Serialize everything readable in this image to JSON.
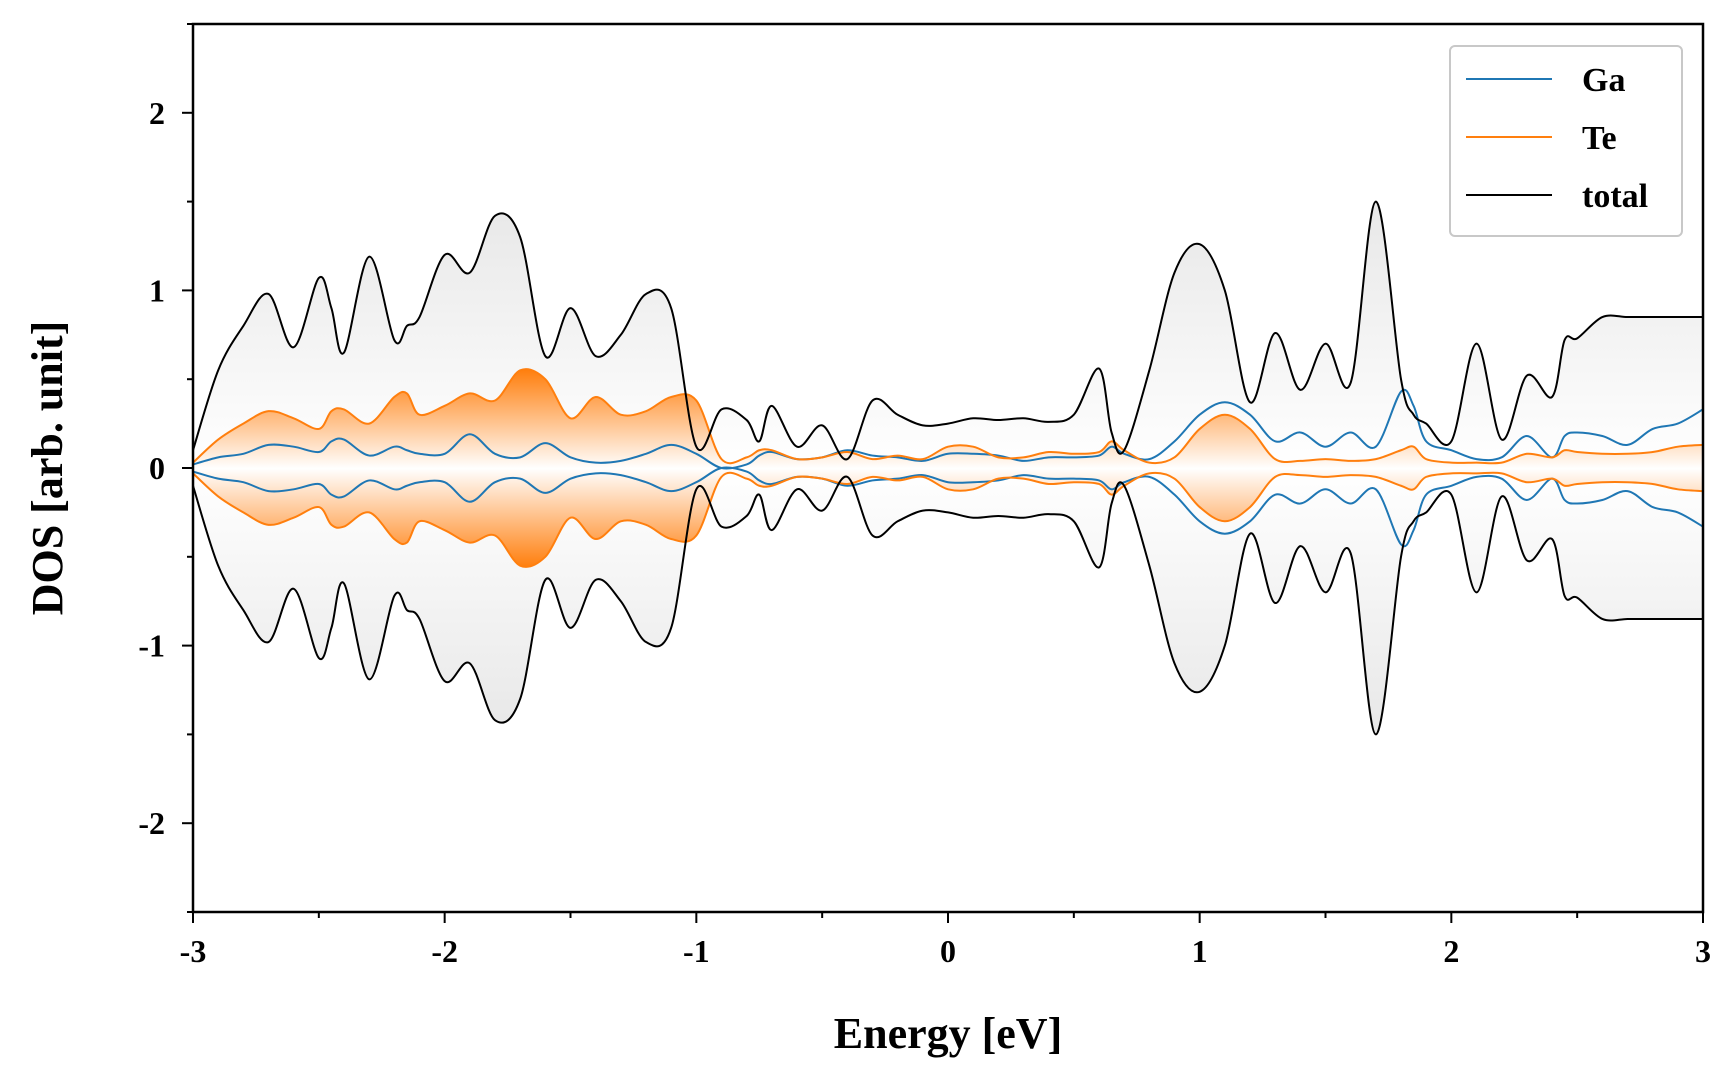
{
  "chart_data": {
    "type": "area",
    "title": "",
    "xlabel": "Energy [eV]",
    "ylabel": "DOS [arb. unit]",
    "xlim": [
      -3,
      3
    ],
    "ylim": [
      -2.5,
      2.5
    ],
    "xticks": [
      -3,
      -2,
      -1,
      0,
      1,
      2,
      3
    ],
    "xtick_labels": [
      "-3",
      "-2",
      "-1",
      "0",
      "1",
      "2",
      "3"
    ],
    "yticks": [
      -2,
      -1,
      0,
      1,
      2
    ],
    "ytick_labels": [
      "-2",
      "-1",
      "0",
      "1",
      "2"
    ],
    "grid": false,
    "legend_position": "top-right",
    "mirrored_about_zero": true,
    "series": [
      {
        "name": "Ga",
        "color": "#1f77b4",
        "filled": false,
        "x": [
          -3.0,
          -2.9,
          -2.8,
          -2.7,
          -2.6,
          -2.5,
          -2.45,
          -2.4,
          -2.3,
          -2.2,
          -2.15,
          -2.1,
          -2.0,
          -1.9,
          -1.8,
          -1.7,
          -1.6,
          -1.5,
          -1.4,
          -1.3,
          -1.2,
          -1.1,
          -1.0,
          -0.9,
          -0.8,
          -0.75,
          -0.7,
          -0.6,
          -0.5,
          -0.4,
          -0.3,
          -0.2,
          -0.1,
          0.0,
          0.1,
          0.2,
          0.3,
          0.4,
          0.5,
          0.6,
          0.65,
          0.7,
          0.8,
          0.9,
          1.0,
          1.1,
          1.2,
          1.3,
          1.4,
          1.5,
          1.6,
          1.7,
          1.8,
          1.85,
          1.9,
          2.0,
          2.1,
          2.2,
          2.3,
          2.4,
          2.45,
          2.5,
          2.6,
          2.7,
          2.8,
          2.9,
          3.0
        ],
        "y": [
          0.02,
          0.06,
          0.08,
          0.13,
          0.12,
          0.09,
          0.15,
          0.16,
          0.07,
          0.12,
          0.1,
          0.08,
          0.08,
          0.19,
          0.08,
          0.06,
          0.14,
          0.06,
          0.03,
          0.04,
          0.08,
          0.13,
          0.08,
          0.0,
          0.02,
          0.07,
          0.09,
          0.05,
          0.06,
          0.1,
          0.07,
          0.06,
          0.04,
          0.08,
          0.08,
          0.07,
          0.04,
          0.06,
          0.06,
          0.07,
          0.12,
          0.08,
          0.05,
          0.15,
          0.3,
          0.37,
          0.3,
          0.15,
          0.2,
          0.12,
          0.2,
          0.12,
          0.43,
          0.35,
          0.15,
          0.1,
          0.05,
          0.06,
          0.18,
          0.06,
          0.18,
          0.2,
          0.18,
          0.13,
          0.22,
          0.25,
          0.33
        ]
      },
      {
        "name": "Te",
        "color": "#ff7f0e",
        "filled": true,
        "x": [
          -3.0,
          -2.9,
          -2.8,
          -2.7,
          -2.6,
          -2.5,
          -2.45,
          -2.4,
          -2.3,
          -2.2,
          -2.15,
          -2.1,
          -2.0,
          -1.9,
          -1.8,
          -1.7,
          -1.6,
          -1.5,
          -1.4,
          -1.3,
          -1.2,
          -1.1,
          -1.0,
          -0.9,
          -0.8,
          -0.75,
          -0.7,
          -0.6,
          -0.5,
          -0.4,
          -0.3,
          -0.2,
          -0.1,
          0.0,
          0.1,
          0.2,
          0.3,
          0.4,
          0.5,
          0.6,
          0.65,
          0.7,
          0.8,
          0.9,
          1.0,
          1.1,
          1.2,
          1.3,
          1.4,
          1.5,
          1.6,
          1.7,
          1.8,
          1.85,
          1.9,
          2.0,
          2.1,
          2.2,
          2.3,
          2.4,
          2.45,
          2.5,
          2.6,
          2.7,
          2.8,
          2.9,
          3.0
        ],
        "y": [
          0.03,
          0.16,
          0.25,
          0.32,
          0.28,
          0.22,
          0.32,
          0.33,
          0.25,
          0.4,
          0.42,
          0.3,
          0.35,
          0.42,
          0.38,
          0.55,
          0.5,
          0.28,
          0.4,
          0.3,
          0.32,
          0.4,
          0.38,
          0.05,
          0.06,
          0.1,
          0.1,
          0.05,
          0.06,
          0.09,
          0.05,
          0.07,
          0.05,
          0.12,
          0.12,
          0.06,
          0.06,
          0.09,
          0.08,
          0.09,
          0.15,
          0.1,
          0.03,
          0.06,
          0.22,
          0.3,
          0.22,
          0.05,
          0.04,
          0.05,
          0.04,
          0.05,
          0.1,
          0.12,
          0.05,
          0.03,
          0.03,
          0.03,
          0.08,
          0.06,
          0.1,
          0.09,
          0.08,
          0.08,
          0.09,
          0.12,
          0.13
        ]
      },
      {
        "name": "total",
        "color": "#000000",
        "filled": true,
        "x": [
          -3.0,
          -2.9,
          -2.8,
          -2.7,
          -2.6,
          -2.5,
          -2.45,
          -2.4,
          -2.3,
          -2.2,
          -2.15,
          -2.1,
          -2.0,
          -1.9,
          -1.8,
          -1.7,
          -1.6,
          -1.5,
          -1.4,
          -1.3,
          -1.2,
          -1.1,
          -1.0,
          -0.9,
          -0.8,
          -0.75,
          -0.7,
          -0.6,
          -0.5,
          -0.4,
          -0.3,
          -0.2,
          -0.1,
          0.0,
          0.1,
          0.2,
          0.3,
          0.4,
          0.5,
          0.6,
          0.65,
          0.7,
          0.8,
          0.9,
          1.0,
          1.1,
          1.2,
          1.3,
          1.4,
          1.5,
          1.6,
          1.7,
          1.8,
          1.85,
          1.9,
          2.0,
          2.1,
          2.2,
          2.3,
          2.4,
          2.45,
          2.5,
          2.6,
          2.7,
          2.8,
          2.9,
          3.0
        ],
        "y": [
          0.1,
          0.55,
          0.8,
          0.98,
          0.68,
          1.07,
          0.9,
          0.65,
          1.19,
          0.72,
          0.8,
          0.85,
          1.2,
          1.1,
          1.42,
          1.3,
          0.63,
          0.9,
          0.63,
          0.75,
          0.98,
          0.9,
          0.12,
          0.33,
          0.27,
          0.15,
          0.35,
          0.12,
          0.24,
          0.05,
          0.38,
          0.3,
          0.24,
          0.25,
          0.28,
          0.27,
          0.28,
          0.26,
          0.3,
          0.56,
          0.2,
          0.1,
          0.55,
          1.1,
          1.26,
          1.0,
          0.37,
          0.76,
          0.44,
          0.7,
          0.48,
          1.5,
          0.5,
          0.3,
          0.25,
          0.15,
          0.7,
          0.16,
          0.52,
          0.4,
          0.72,
          0.73,
          0.85,
          0.85,
          0.85,
          0.85,
          0.85
        ]
      }
    ]
  }
}
